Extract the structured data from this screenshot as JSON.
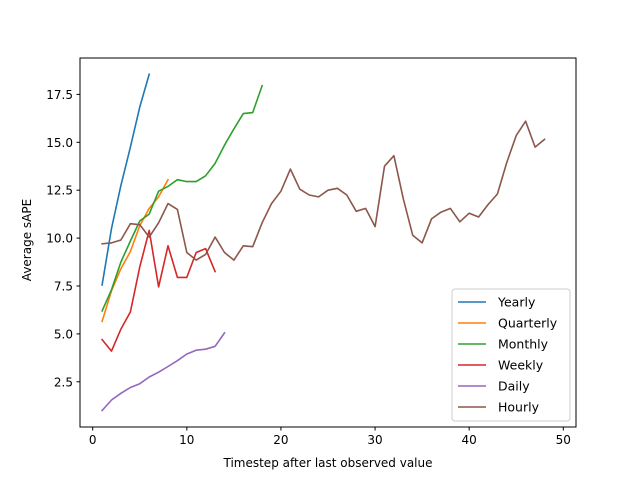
{
  "chart_data": {
    "type": "line",
    "title": "",
    "xlabel": "Timestep after last observed value",
    "ylabel": "Average sAPE",
    "xlim": [
      -1.35,
      51.35
    ],
    "ylim": [
      0.14,
      19.4
    ],
    "xticks": [
      0,
      10,
      20,
      30,
      40,
      50
    ],
    "yticks": [
      2.5,
      5.0,
      7.5,
      10.0,
      12.5,
      15.0,
      17.5
    ],
    "ytick_labels": [
      "2.5",
      "5.0",
      "7.5",
      "10.0",
      "12.5",
      "15.0",
      "17.5"
    ],
    "grid": false,
    "legend_position": "lower-right",
    "series": [
      {
        "name": "Yearly",
        "color": "#1f77b4",
        "x": [
          1,
          2,
          3,
          4,
          5,
          6
        ],
        "y": [
          7.55,
          10.5,
          12.75,
          14.75,
          16.85,
          18.55
        ]
      },
      {
        "name": "Quarterly",
        "color": "#ff7f0e",
        "x": [
          1,
          2,
          3,
          4,
          5,
          6,
          7,
          8
        ],
        "y": [
          5.65,
          7.25,
          8.4,
          9.3,
          10.65,
          11.55,
          12.15,
          13.05
        ]
      },
      {
        "name": "Monthly",
        "color": "#2ca02c",
        "x": [
          1,
          2,
          3,
          4,
          5,
          6,
          7,
          8,
          9,
          10,
          11,
          12,
          13,
          14,
          15,
          16,
          17,
          18
        ],
        "y": [
          6.2,
          7.3,
          8.75,
          9.85,
          10.9,
          11.25,
          12.45,
          12.7,
          13.05,
          12.95,
          12.95,
          13.25,
          13.9,
          14.85,
          15.7,
          16.5,
          16.55,
          17.95
        ]
      },
      {
        "name": "Weekly",
        "color": "#d62728",
        "x": [
          1,
          2,
          3,
          4,
          5,
          6,
          7,
          8,
          9,
          10,
          11,
          12,
          13
        ],
        "y": [
          4.7,
          4.1,
          5.25,
          6.15,
          8.5,
          10.4,
          7.45,
          9.6,
          7.95,
          7.95,
          9.25,
          9.45,
          8.25
        ]
      },
      {
        "name": "Daily",
        "color": "#9467bd",
        "x": [
          1,
          2,
          3,
          4,
          5,
          6,
          7,
          8,
          9,
          10,
          11,
          12,
          13,
          14
        ],
        "y": [
          1.0,
          1.55,
          1.9,
          2.2,
          2.4,
          2.75,
          3.0,
          3.3,
          3.6,
          3.95,
          4.15,
          4.2,
          4.35,
          5.05
        ]
      },
      {
        "name": "Hourly",
        "color": "#8c564b",
        "x": [
          1,
          2,
          3,
          4,
          5,
          6,
          7,
          8,
          9,
          10,
          11,
          12,
          13,
          14,
          15,
          16,
          17,
          18,
          19,
          20,
          21,
          22,
          23,
          24,
          25,
          26,
          27,
          28,
          29,
          30,
          31,
          32,
          33,
          34,
          35,
          36,
          37,
          38,
          39,
          40,
          41,
          42,
          43,
          44,
          45,
          46,
          47,
          48
        ],
        "y": [
          9.7,
          9.75,
          9.9,
          10.75,
          10.7,
          10.05,
          10.8,
          11.8,
          11.5,
          9.25,
          8.85,
          9.15,
          10.05,
          9.25,
          8.85,
          9.6,
          9.55,
          10.8,
          11.8,
          12.45,
          13.6,
          12.55,
          12.25,
          12.15,
          12.5,
          12.6,
          12.25,
          11.4,
          11.55,
          10.6,
          13.75,
          14.3,
          12.05,
          10.15,
          9.75,
          11.0,
          11.35,
          11.55,
          10.85,
          11.3,
          11.1,
          11.75,
          12.3,
          13.95,
          15.35,
          16.1,
          14.75,
          15.15
        ]
      }
    ]
  }
}
